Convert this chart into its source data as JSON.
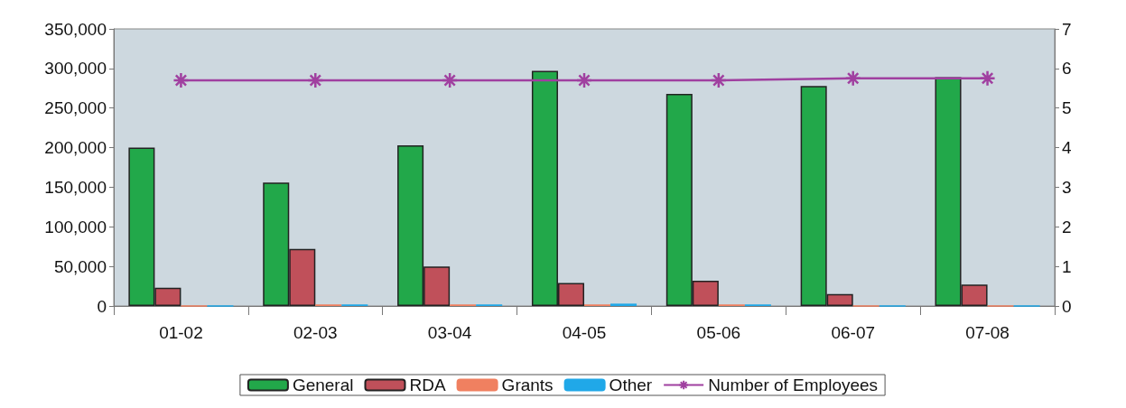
{
  "chart_data": {
    "type": "bar",
    "categories": [
      "01-02",
      "02-03",
      "03-04",
      "04-05",
      "05-06",
      "06-07",
      "07-08"
    ],
    "series": [
      {
        "name": "General",
        "color": "#22a84a",
        "values": [
          200000,
          156000,
          203000,
          297000,
          268000,
          278000,
          289000
        ]
      },
      {
        "name": "RDA",
        "color": "#c0505a",
        "values": [
          23000,
          72000,
          50000,
          29000,
          32000,
          15000,
          27000
        ]
      },
      {
        "name": "Grants",
        "color": "#f08060",
        "values": [
          0,
          2000,
          2000,
          2000,
          2000,
          0,
          0
        ]
      },
      {
        "name": "Other",
        "color": "#20a8e8",
        "values": [
          0,
          2000,
          2000,
          3000,
          2000,
          0,
          0
        ]
      },
      {
        "name": "Number of Employees",
        "type": "line",
        "axis": "y2",
        "color": "#a040a0",
        "marker": "cross",
        "values": [
          5.7,
          5.7,
          5.7,
          5.7,
          5.7,
          5.75,
          5.75
        ]
      }
    ],
    "ylim": [
      0,
      350000
    ],
    "yticks": [
      0,
      {
        "value": 50000,
        "label": "50,000"
      },
      {
        "value": 100000,
        "label": "100,000"
      },
      {
        "value": 150000,
        "label": "150,000"
      },
      {
        "value": 200000,
        "label": "200,000"
      },
      {
        "value": 250000,
        "label": "250,000"
      },
      {
        "value": 300000,
        "label": "300,000"
      },
      {
        "value": 350000,
        "label": "350,000"
      }
    ],
    "y2lim": [
      0,
      7
    ],
    "y2ticks": [
      0,
      1,
      2,
      3,
      4,
      5,
      6,
      7
    ],
    "grid": false,
    "legend": "bottom"
  }
}
